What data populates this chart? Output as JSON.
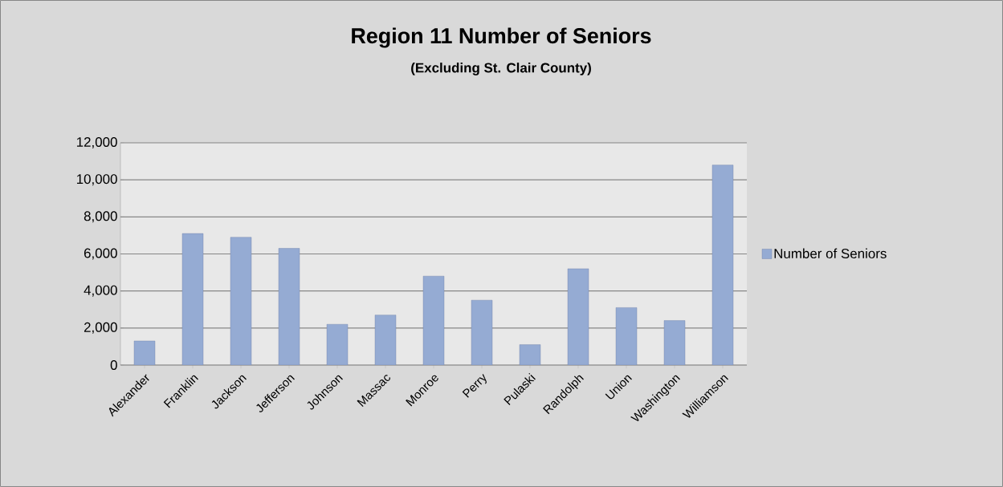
{
  "chart_data": {
    "type": "bar",
    "title": "Region 11 Number of Seniors",
    "subtitle": "(Excluding St. Clair County)",
    "categories": [
      "Alexander",
      "Franklin",
      "Jackson",
      "Jefferson",
      "Johnson",
      "Massac",
      "Monroe",
      "Perry",
      "Pulaski",
      "Randolph",
      "Union",
      "Washington",
      "Williamson"
    ],
    "series": [
      {
        "name": "Number of Seniors",
        "color": "#95abd3",
        "values": [
          1300,
          7100,
          6900,
          6300,
          2200,
          2700,
          4800,
          3500,
          1100,
          5200,
          3100,
          2400,
          10800
        ]
      }
    ],
    "ylim": [
      0,
      12000
    ],
    "yticks": [
      {
        "value": 0,
        "label": "0"
      },
      {
        "value": 2000,
        "label": "2,000"
      },
      {
        "value": 4000,
        "label": "4,000"
      },
      {
        "value": 6000,
        "label": "6,000"
      },
      {
        "value": 8000,
        "label": "8,000"
      },
      {
        "value": 10000,
        "label": "10,000"
      },
      {
        "value": 12000,
        "label": "12,000"
      }
    ],
    "grid": "y",
    "legend": "right"
  }
}
